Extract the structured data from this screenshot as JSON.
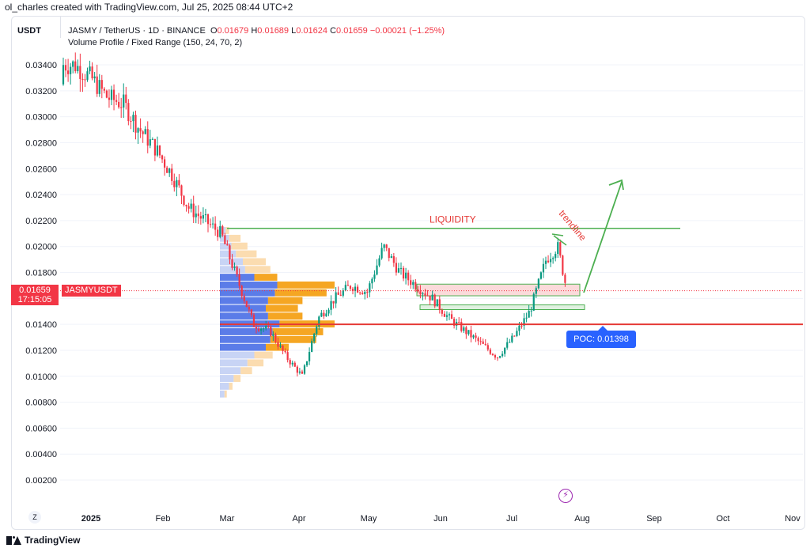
{
  "header": {
    "author_line": "ol_charles created with TradingView.com, Jul 25, 2025 08:44 UTC+2",
    "currency": "USDT",
    "symbol_line": "JASMY / TetherUS · 1D · BINANCE",
    "ohlc": {
      "o_label": "O",
      "o": "0.01679",
      "h_label": "H",
      "h": "0.01689",
      "l_label": "L",
      "l": "0.01624",
      "c_label": "C",
      "c": "0.01659",
      "change": "−0.00021 (−1.25%)"
    },
    "indicator_line": "Volume Profile / Fixed Range (150, 24, 70, 2)"
  },
  "price_badge": {
    "price": "0.01659",
    "countdown": "17:15:05",
    "symbol": "JASMYUSDT"
  },
  "annotations": {
    "liquidity": "LIQUIDITY",
    "trendline": "trendline",
    "poc": "POC: 0.01398"
  },
  "footer": {
    "brand": "TradingView",
    "z_button": "Z",
    "flash_icon": "lightning-icon"
  },
  "colors": {
    "up": "#089981",
    "down": "#f23645",
    "liquidity_line": "#4caf50",
    "support_line": "#e53935",
    "poc_badge": "#2962ff",
    "vp_blue": "#5b7ce8",
    "vp_orange": "#f5a623",
    "vp_light_blue": "#c8d4f5",
    "vp_light_orange": "#fbdcb0"
  },
  "chart_data": {
    "type": "candlestick",
    "symbol": "JASMY / TetherUS",
    "interval": "1D",
    "exchange": "BINANCE",
    "y_axis": {
      "ticks": [
        "0.03400",
        "0.03200",
        "0.03000",
        "0.02800",
        "0.02600",
        "0.02400",
        "0.02200",
        "0.02000",
        "0.01800",
        "0.01600",
        "0.01400",
        "0.01200",
        "0.01000",
        "0.00800",
        "0.00600",
        "0.00400",
        "0.00200"
      ],
      "range": [
        0.0,
        0.036
      ]
    },
    "x_axis": {
      "ticks": [
        "2025",
        "Feb",
        "Mar",
        "Apr",
        "May",
        "Jun",
        "Jul",
        "Aug",
        "Sep",
        "Oct",
        "Nov"
      ]
    },
    "price_path": {
      "dates": [
        "2024-12-25",
        "2025-01-01",
        "2025-01-08",
        "2025-01-15",
        "2025-01-22",
        "2025-01-29",
        "2025-02-05",
        "2025-02-12",
        "2025-02-19",
        "2025-02-26",
        "2025-03-05",
        "2025-03-12",
        "2025-03-19",
        "2025-03-26",
        "2025-04-02",
        "2025-04-09",
        "2025-04-16",
        "2025-04-23",
        "2025-04-30",
        "2025-05-07",
        "2025-05-14",
        "2025-05-21",
        "2025-05-28",
        "2025-06-04",
        "2025-06-11",
        "2025-06-18",
        "2025-06-25",
        "2025-07-02",
        "2025-07-09",
        "2025-07-16",
        "2025-07-21",
        "2025-07-25"
      ],
      "close": [
        0.034,
        0.033,
        0.0315,
        0.031,
        0.029,
        0.0275,
        0.0255,
        0.023,
        0.022,
        0.021,
        0.0175,
        0.014,
        0.0135,
        0.0115,
        0.01,
        0.0145,
        0.016,
        0.017,
        0.0165,
        0.02,
        0.018,
        0.017,
        0.016,
        0.0145,
        0.0135,
        0.0125,
        0.0115,
        0.013,
        0.015,
        0.019,
        0.02,
        0.01659
      ]
    },
    "horizontal_lines": [
      {
        "name": "LIQUIDITY",
        "value": 0.0214
      },
      {
        "name": "support",
        "value": 0.014
      }
    ],
    "zones": [
      {
        "from": 0.0162,
        "to": 0.0171,
        "color": "#f8bcbc"
      },
      {
        "from": 0.0152,
        "to": 0.0155,
        "color": "#c7e6c7"
      }
    ],
    "last_price": 0.01659,
    "poc": 0.01398,
    "volume_profile": {
      "range": [
        0.0085,
        0.0215
      ],
      "bins": [
        {
          "price": 0.0212,
          "up": 0.05,
          "down": 0.03
        },
        {
          "price": 0.0206,
          "up": 0.08,
          "down": 0.1
        },
        {
          "price": 0.02,
          "up": 0.1,
          "down": 0.14
        },
        {
          "price": 0.0194,
          "up": 0.14,
          "down": 0.18
        },
        {
          "price": 0.0188,
          "up": 0.2,
          "down": 0.2
        },
        {
          "price": 0.0182,
          "up": 0.22,
          "down": 0.22
        },
        {
          "price": 0.0176,
          "up": 0.3,
          "down": 0.2
        },
        {
          "price": 0.017,
          "up": 0.5,
          "down": 0.5
        },
        {
          "price": 0.0164,
          "up": 0.48,
          "down": 0.45
        },
        {
          "price": 0.0158,
          "up": 0.42,
          "down": 0.3
        },
        {
          "price": 0.0152,
          "up": 0.4,
          "down": 0.28
        },
        {
          "price": 0.0146,
          "up": 0.42,
          "down": 0.3
        },
        {
          "price": 0.014,
          "up": 0.52,
          "down": 0.48
        },
        {
          "price": 0.0134,
          "up": 0.46,
          "down": 0.44
        },
        {
          "price": 0.0128,
          "up": 0.44,
          "down": 0.4
        },
        {
          "price": 0.0122,
          "up": 0.4,
          "down": 0.2
        },
        {
          "price": 0.0116,
          "up": 0.3,
          "down": 0.16
        },
        {
          "price": 0.011,
          "up": 0.24,
          "down": 0.14
        },
        {
          "price": 0.0104,
          "up": 0.18,
          "down": 0.1
        },
        {
          "price": 0.0098,
          "up": 0.12,
          "down": 0.06
        },
        {
          "price": 0.0092,
          "up": 0.08,
          "down": 0.03
        },
        {
          "price": 0.0086,
          "up": 0.04,
          "down": 0.02
        }
      ]
    }
  }
}
